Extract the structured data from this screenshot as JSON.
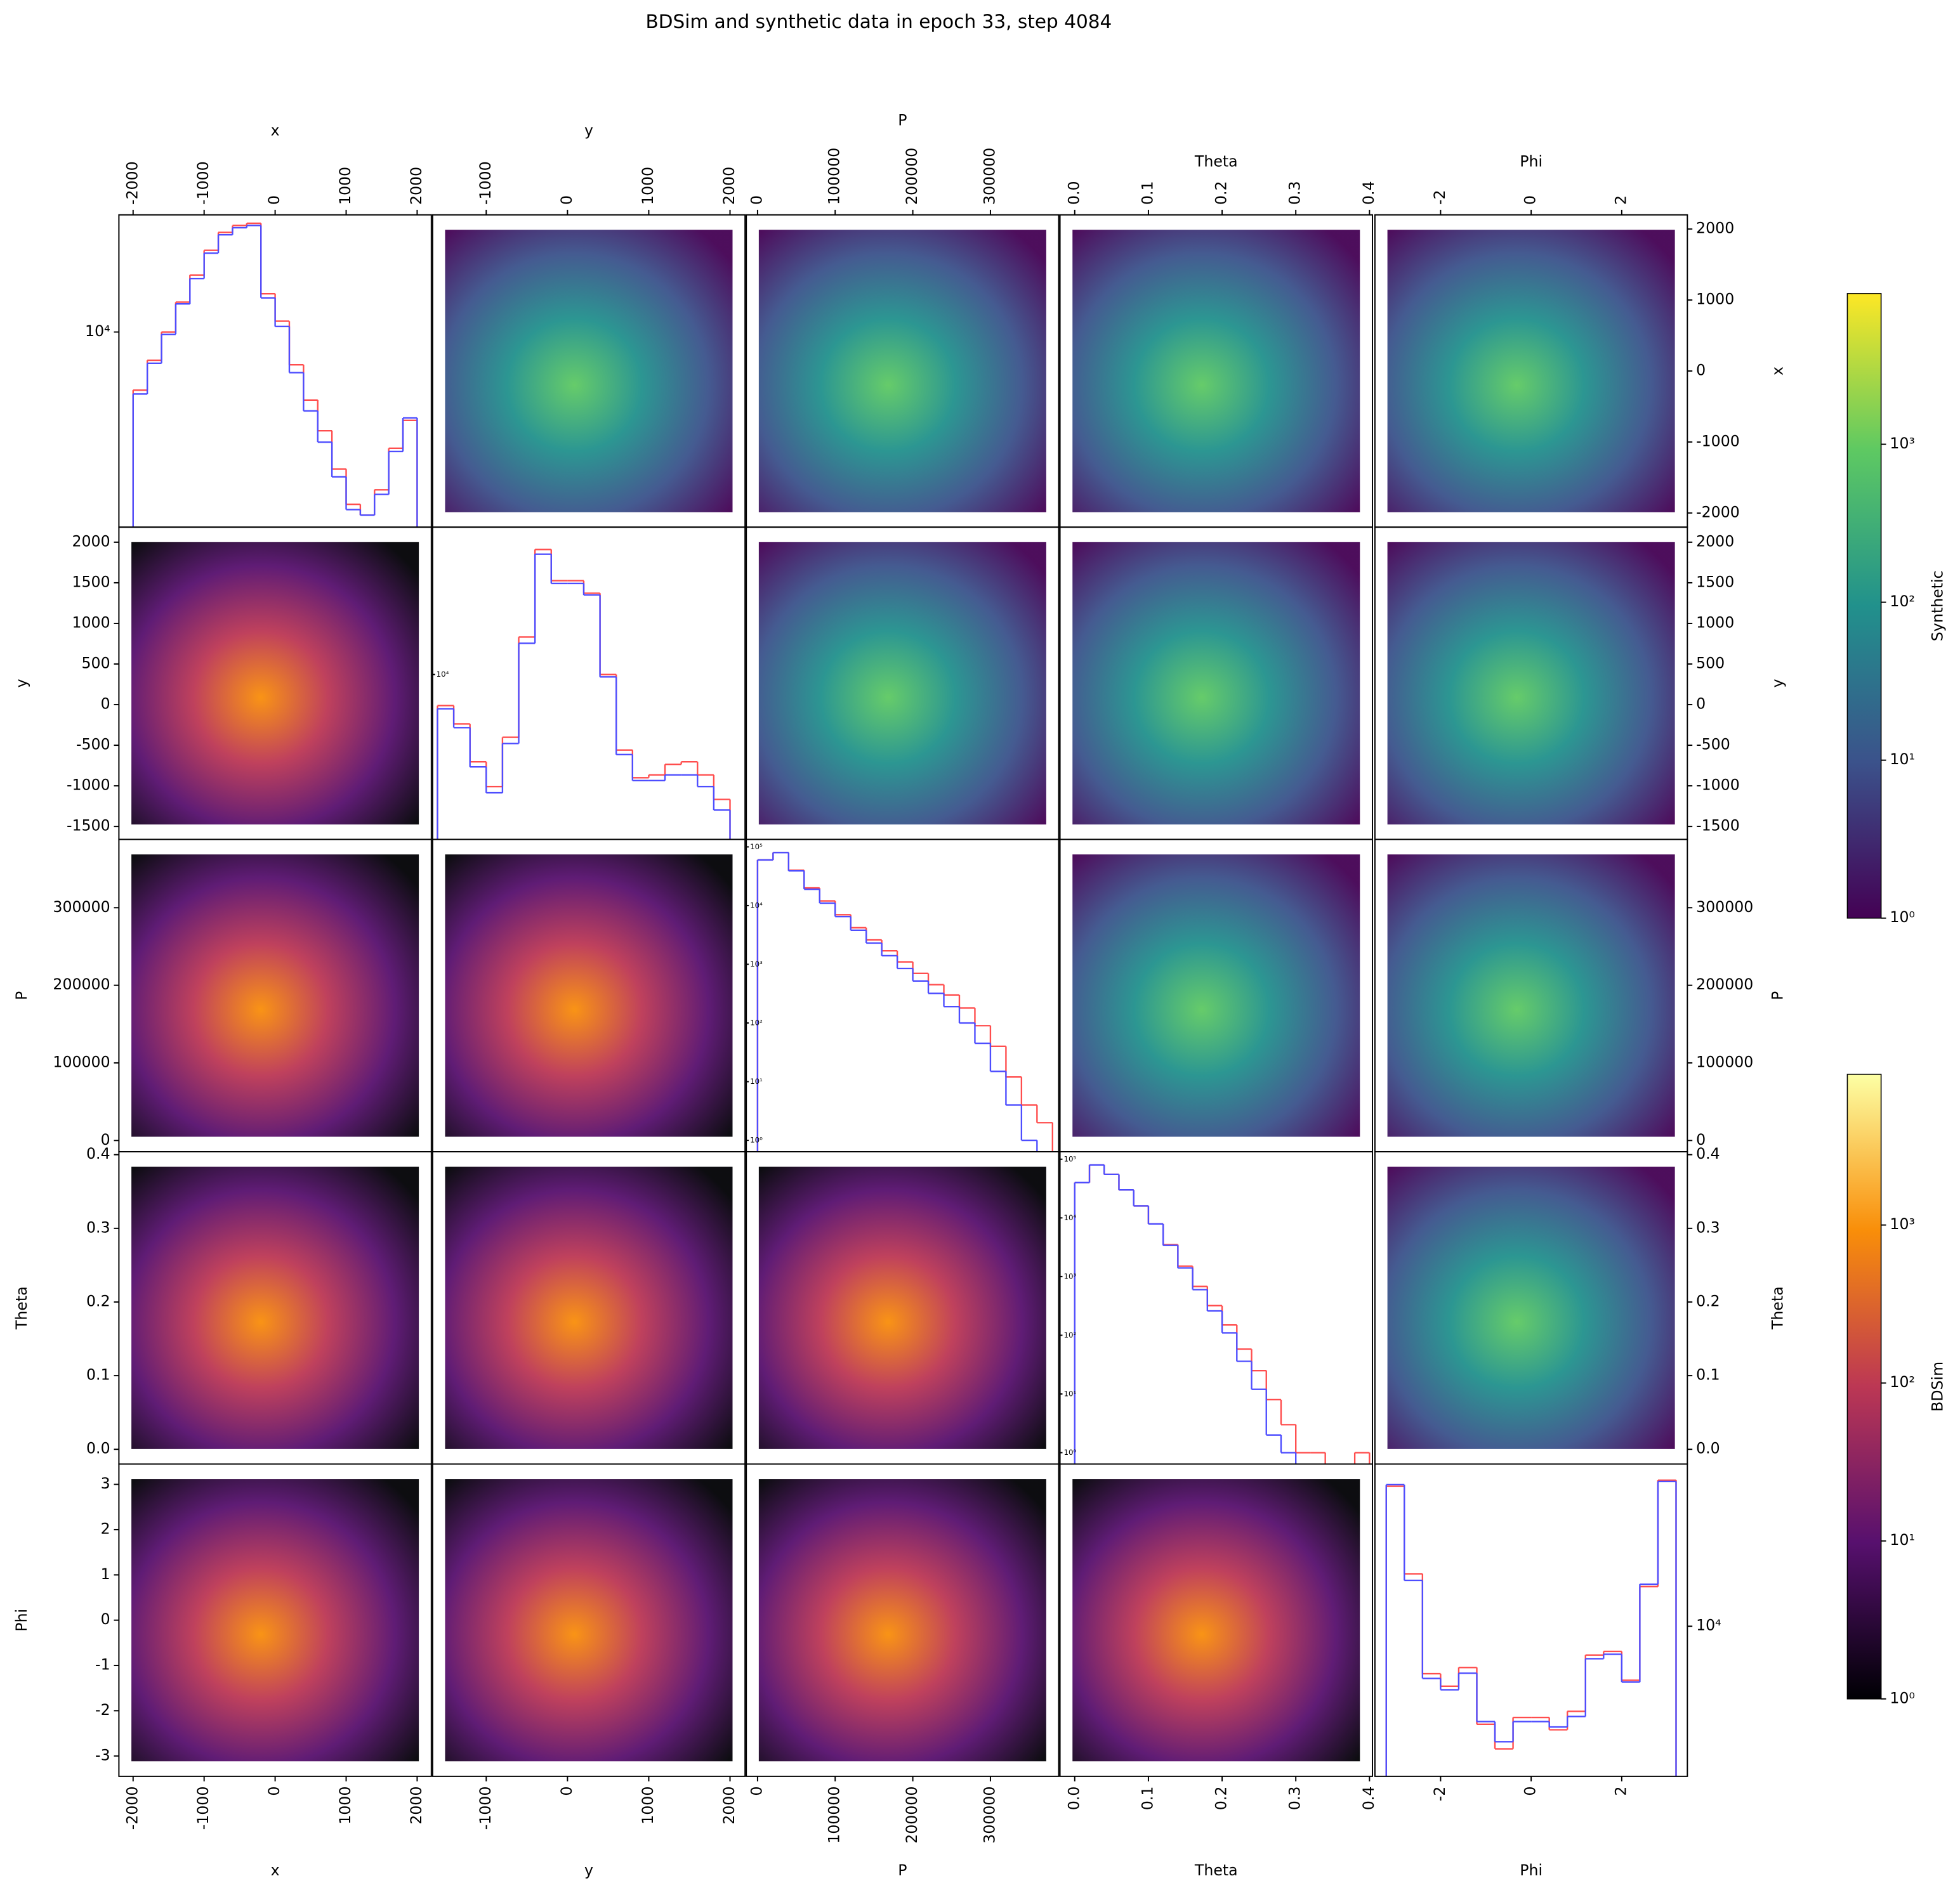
{
  "chart_data": {
    "type": "pairplot",
    "title": "BDSim and synthetic data in epoch 33, step 4084",
    "variables": [
      {
        "label": "x",
        "lim": [
          -2200,
          2200
        ],
        "xticks": [
          -2000,
          -1000,
          0,
          1000,
          2000
        ],
        "yticks": [
          -2000,
          -1000,
          0,
          1000,
          2000
        ]
      },
      {
        "label": "y",
        "lim": [
          -1660,
          2185
        ],
        "xticks": [
          -1000,
          0,
          1000,
          2000
        ],
        "yticks": [
          -1500,
          -1000,
          -500,
          0,
          500,
          1000,
          1500,
          2000
        ]
      },
      {
        "label": "P",
        "lim": [
          -14500,
          388000
        ],
        "xticks": [
          0,
          100000,
          200000,
          300000
        ],
        "yticks": [
          0,
          100000,
          200000,
          300000
        ]
      },
      {
        "label": "Theta",
        "lim": [
          -0.02,
          0.404
        ],
        "xticks": [
          {
            "value": 0,
            "label": "0.0"
          },
          0.1,
          0.2,
          0.3,
          0.4
        ],
        "yticks": [
          {
            "value": 0,
            "label": "0.0"
          },
          0.1,
          0.2,
          0.3,
          0.4
        ]
      },
      {
        "label": "Phi",
        "lim": [
          -3.45,
          3.45
        ],
        "xticks": [
          -2,
          0,
          2
        ],
        "yticks": [
          -3,
          -2,
          -1,
          0,
          1,
          2,
          3
        ]
      }
    ],
    "diagonal": [
      {
        "log": true,
        "ylim": [
          1800,
          28000
        ],
        "yticks": [
          {
            "value": 10000,
            "label": "10⁴"
          }
        ],
        "bins": [
          -2000,
          -1800,
          -1600,
          -1400,
          -1200,
          -1000,
          -800,
          -600,
          -400,
          -200,
          0,
          200,
          400,
          600,
          800,
          1000,
          1200,
          1400,
          1600,
          1800,
          2000
        ],
        "series": [
          {
            "color": "#ff4d4d",
            "values": [
              6000,
              7800,
              10000,
              13000,
              16500,
              20500,
              24000,
              25500,
              26000,
              14000,
              11000,
              7500,
              5500,
              4200,
              3000,
              2200,
              2000,
              2500,
              3600,
              4600
            ]
          },
          {
            "color": "#4d4dff",
            "values": [
              5800,
              7600,
              9800,
              12800,
              16000,
              20000,
              23500,
              25000,
              25500,
              13500,
              10500,
              7000,
              5000,
              3800,
              2800,
              2100,
              2000,
              2400,
              3500,
              4700
            ]
          }
        ]
      },
      {
        "log": true,
        "ylim": [
          2500,
          34500
        ],
        "yticks": [
          {
            "value": 10000,
            "label": "10⁴"
          }
        ],
        "bins": [
          -1600,
          -1400,
          -1200,
          -1000,
          -800,
          -600,
          -400,
          -200,
          0,
          200,
          400,
          600,
          800,
          1000,
          1200,
          1400,
          1600,
          1800,
          2000
        ],
        "series": [
          {
            "color": "#ff4d4d",
            "values": [
              7700,
              6600,
              4800,
              3900,
              5900,
              13700,
              28600,
              22000,
              22000,
              19800,
              10000,
              5300,
              4200,
              4300,
              4700,
              4800,
              4300,
              3500
            ]
          },
          {
            "color": "#4d4dff",
            "values": [
              7500,
              6400,
              4600,
              3700,
              5600,
              13000,
              27500,
              21500,
              21500,
              19500,
              9800,
              5100,
              4100,
              4100,
              4300,
              4300,
              3900,
              3200
            ]
          }
        ]
      },
      {
        "log": true,
        "ylim": [
          0.64,
          134000
        ],
        "yticks": [
          {
            "value": 1,
            "label": "10⁰"
          },
          {
            "value": 10,
            "label": "10¹"
          },
          {
            "value": 100,
            "label": "10²"
          },
          {
            "value": 1000,
            "label": "10³"
          },
          {
            "value": 10000,
            "label": "10⁴"
          },
          {
            "value": 100000,
            "label": "10⁵"
          }
        ],
        "bins": [
          0,
          20000,
          40000,
          60000,
          80000,
          100000,
          120000,
          140000,
          160000,
          180000,
          200000,
          220000,
          240000,
          260000,
          280000,
          300000,
          320000,
          340000,
          360000,
          380000
        ],
        "series": [
          {
            "color": "#ff4d4d",
            "values": [
              60000,
              80000,
              40000,
              20000,
              12000,
              7000,
              4200,
              2600,
              1700,
              1100,
              700,
              450,
              300,
              180,
              90,
              40,
              12,
              4,
              2
            ]
          },
          {
            "color": "#4d4dff",
            "values": [
              60000,
              80000,
              39000,
              19000,
              11000,
              6500,
              3800,
              2300,
              1400,
              850,
              520,
              320,
              190,
              100,
              45,
              15,
              4,
              1,
              null
            ]
          }
        ]
      },
      {
        "log": true,
        "ylim": [
          0.64,
          134000
        ],
        "yticks": [
          {
            "value": 1,
            "label": "10⁰"
          },
          {
            "value": 10,
            "label": "10¹"
          },
          {
            "value": 100,
            "label": "10²"
          },
          {
            "value": 1000,
            "label": "10³"
          },
          {
            "value": 10000,
            "label": "10⁴"
          },
          {
            "value": 100000,
            "label": "10⁵"
          }
        ],
        "bins": [
          0,
          0.02,
          0.04,
          0.06,
          0.08,
          0.1,
          0.12,
          0.14,
          0.16,
          0.18,
          0.2,
          0.22,
          0.24,
          0.26,
          0.28,
          0.3,
          0.32,
          0.34,
          0.36,
          0.38,
          0.4
        ],
        "series": [
          {
            "color": "#ff4d4d",
            "values": [
              40000,
              80000,
              55000,
              30000,
              16000,
              7900,
              3500,
              1500,
              680,
              320,
              150,
              58,
              25,
              8,
              3,
              1,
              1,
              null,
              null,
              1
            ]
          },
          {
            "color": "#4d4dff",
            "values": [
              40000,
              80000,
              55000,
              30000,
              16000,
              7900,
              3400,
              1400,
              600,
              260,
              110,
              36,
              12,
              2,
              1,
              null,
              null,
              null,
              null,
              null
            ]
          }
        ]
      },
      {
        "log": true,
        "ylim": [
          2650,
          42000
        ],
        "yticks": [
          {
            "value": 10000,
            "label": "10⁴"
          }
        ],
        "bins": [
          -3.2,
          -2.8,
          -2.4,
          -2,
          -1.6,
          -1.2,
          -0.8,
          -0.4,
          0,
          0.4,
          0.8,
          1.2,
          1.6,
          2,
          2.4,
          2.8,
          3.2
        ],
        "series": [
          {
            "color": "#ff4d4d",
            "values": [
              34500,
              15900,
              6570,
              5880,
              6940,
              4200,
              3380,
              4460,
              4460,
              4000,
              4710,
              7750,
              8000,
              6200,
              14200,
              36400
            ]
          },
          {
            "color": "#4d4dff",
            "values": [
              35000,
              15000,
              6300,
              5700,
              6600,
              4300,
              3600,
              4300,
              4300,
              4100,
              4500,
              7500,
              7800,
              6100,
              14500,
              36000
            ]
          }
        ]
      }
    ],
    "colorbars": [
      {
        "label": "Synthetic",
        "colormap": "viridis",
        "log": true,
        "lim": [
          1,
          9000
        ],
        "ticks": [
          {
            "value": 1,
            "label": "10⁰"
          },
          {
            "value": 10,
            "label": "10¹"
          },
          {
            "value": 100,
            "label": "10²"
          },
          {
            "value": 1000,
            "label": "10³"
          }
        ]
      },
      {
        "label": "BDSim",
        "colormap": "inferno",
        "log": true,
        "lim": [
          1,
          9000
        ],
        "ticks": [
          {
            "value": 1,
            "label": "10⁰"
          },
          {
            "value": 10,
            "label": "10¹"
          },
          {
            "value": 100,
            "label": "10²"
          },
          {
            "value": 1000,
            "label": "10³"
          }
        ]
      }
    ]
  }
}
